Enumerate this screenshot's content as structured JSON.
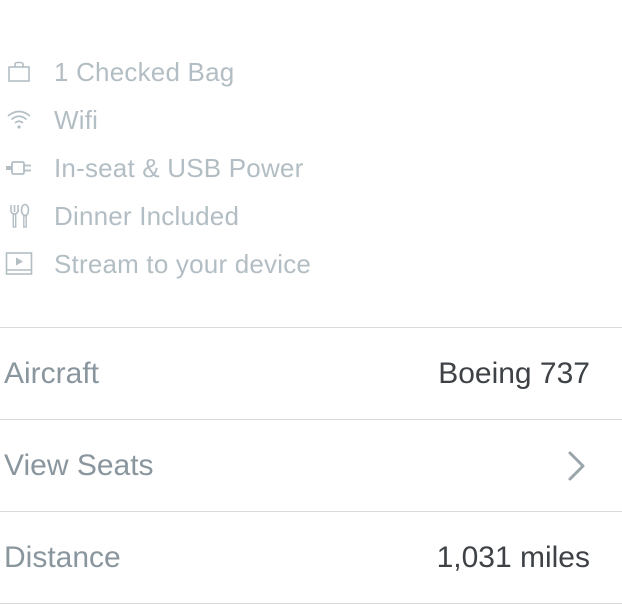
{
  "amenities": [
    {
      "icon": "bag-icon",
      "label": "1 Checked Bag"
    },
    {
      "icon": "wifi-icon",
      "label": "Wifi"
    },
    {
      "icon": "power-plug-icon",
      "label": "In-seat & USB Power"
    },
    {
      "icon": "fork-knife-icon",
      "label": "Dinner Included"
    },
    {
      "icon": "play-screen-icon",
      "label": "Stream to your device"
    }
  ],
  "details": {
    "aircraft": {
      "label": "Aircraft",
      "value": "Boeing 737"
    },
    "view_seats": {
      "label": "View Seats",
      "icon": "chevron-right-icon"
    },
    "distance": {
      "label": "Distance",
      "value": "1,031 miles"
    }
  },
  "colors": {
    "amenity_text": "#b3bec4",
    "row_label": "#8a969e",
    "row_value": "#3e4246",
    "divider": "#d8dcde"
  }
}
